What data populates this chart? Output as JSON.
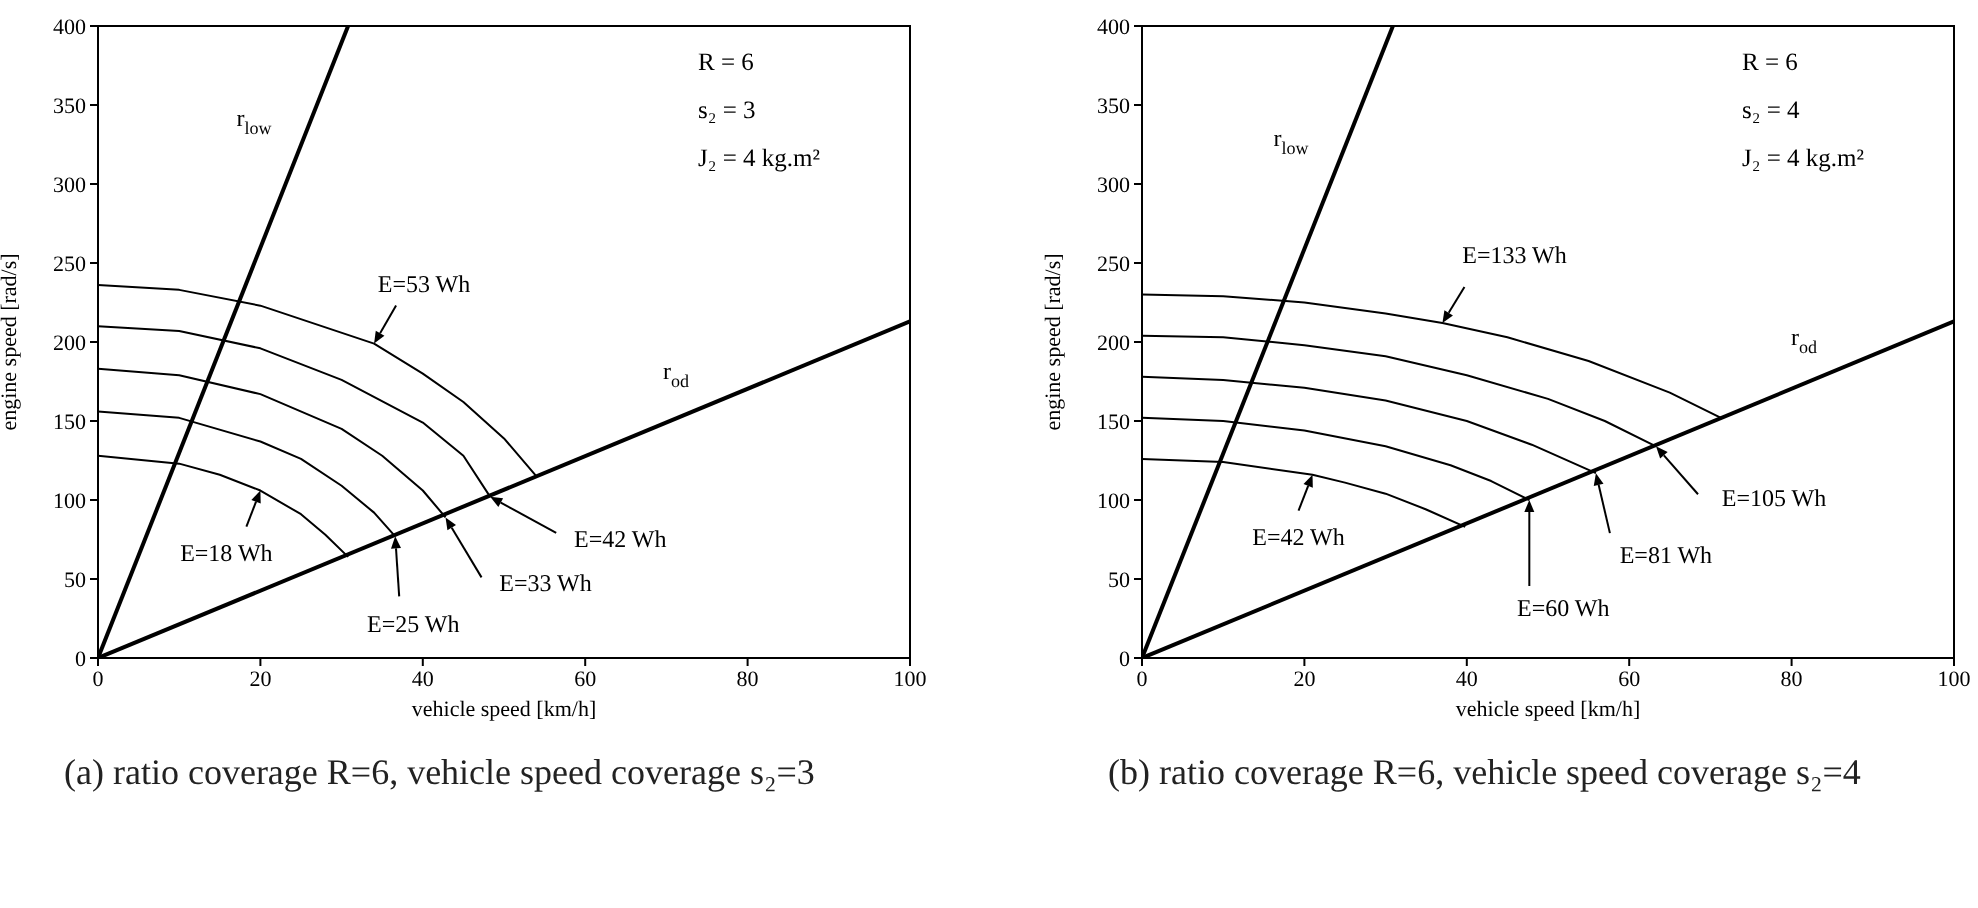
{
  "chart_data": [
    {
      "type": "line",
      "title": "(a) ratio coverage R=6, vehicle speed coverage s₂=3",
      "xlabel": "vehicle speed  [km/h]",
      "ylabel": "engine speed  [rad/s]",
      "xlim": [
        0,
        100
      ],
      "ylim": [
        0,
        400
      ],
      "xticks": [
        0,
        20,
        40,
        60,
        80,
        100
      ],
      "yticks": [
        0,
        50,
        100,
        150,
        200,
        250,
        300,
        350,
        400
      ],
      "marker": "none",
      "line_style": "solid",
      "annotations": [
        "R = 6",
        "s₂ = 3",
        "J₂ = 4 kg.m²",
        {
          "text": "E=53 Wh",
          "x": 34,
          "y": 199
        },
        {
          "text": "E=42 Wh",
          "x": 48.3,
          "y": 102
        },
        {
          "text": "E=33 Wh",
          "x": 42.8,
          "y": 89
        },
        {
          "text": "E=25 Wh",
          "x": 36.6,
          "y": 77
        },
        {
          "text": "E=18 Wh",
          "x": 20,
          "y": 106
        }
      ],
      "series": [
        {
          "name": "r$_{low}$",
          "color": "#000000",
          "x": [
            0,
            30.8
          ],
          "values": [
            0,
            400
          ]
        },
        {
          "name": "r$_{od}$",
          "color": "#000000",
          "x": [
            0,
            100
          ],
          "values": [
            0,
            213
          ]
        },
        {
          "color": "#000000",
          "x": [
            0,
            10,
            20,
            34,
            40,
            45,
            50,
            54
          ],
          "values": [
            236,
            233,
            223,
            199,
            180,
            162,
            139,
            115
          ]
        },
        {
          "color": "#000000",
          "x": [
            0,
            10,
            20,
            30,
            40,
            45,
            48.3
          ],
          "values": [
            210,
            207,
            196,
            176,
            149,
            128,
            102
          ]
        },
        {
          "color": "#000000",
          "x": [
            0,
            10,
            20,
            30,
            35,
            40,
            42.8
          ],
          "values": [
            183,
            179,
            167,
            145,
            128,
            106,
            89
          ]
        },
        {
          "color": "#000000",
          "x": [
            0,
            10,
            20,
            25,
            30,
            34,
            36.6
          ],
          "values": [
            156,
            152,
            137,
            126,
            109,
            92,
            77
          ]
        },
        {
          "color": "#000000",
          "x": [
            0,
            10,
            15,
            20,
            25,
            28,
            30.8
          ],
          "values": [
            128,
            123,
            116,
            106,
            91,
            78,
            64
          ]
        }
      ]
    },
    {
      "type": "line",
      "title": "(b) ratio coverage R=6, vehicle speed coverage s₂=4",
      "xlabel": "vehicle speed  [km/h]",
      "ylabel": "engine speed  [rad/s]",
      "xlim": [
        0,
        100
      ],
      "ylim": [
        0,
        400
      ],
      "xticks": [
        0,
        20,
        40,
        60,
        80,
        100
      ],
      "yticks": [
        0,
        50,
        100,
        150,
        200,
        250,
        300,
        350,
        400
      ],
      "marker": "none",
      "line_style": "solid",
      "annotations": [
        "R = 6",
        "s₂ = 4",
        "J₂ = 4 kg.m²",
        {
          "text": "E=133 Wh",
          "x": 37,
          "y": 212
        },
        {
          "text": "E=105 Wh",
          "x": 63.3,
          "y": 134
        },
        {
          "text": "E=81 Wh",
          "x": 55.9,
          "y": 117
        },
        {
          "text": "E=60 Wh",
          "x": 47.7,
          "y": 100
        },
        {
          "text": "E=42 Wh",
          "x": 21,
          "y": 116
        }
      ],
      "series": [
        {
          "name": "r$_{low}$",
          "color": "#000000",
          "x": [
            0,
            30.9
          ],
          "values": [
            0,
            400
          ]
        },
        {
          "name": "r$_{od}$",
          "color": "#000000",
          "x": [
            0,
            100
          ],
          "values": [
            0,
            213
          ]
        },
        {
          "color": "#000000",
          "x": [
            0,
            10,
            20,
            30,
            37,
            45,
            55,
            65,
            71.3
          ],
          "values": [
            230,
            229,
            225,
            218,
            212,
            203,
            188,
            168,
            152
          ]
        },
        {
          "color": "#000000",
          "x": [
            0,
            10,
            20,
            30,
            40,
            50,
            57,
            63.3
          ],
          "values": [
            204,
            203,
            198,
            191,
            179,
            164,
            150,
            134
          ]
        },
        {
          "color": "#000000",
          "x": [
            0,
            10,
            20,
            30,
            40,
            48,
            55.9
          ],
          "values": [
            178,
            176,
            171,
            163,
            150,
            135,
            117
          ]
        },
        {
          "color": "#000000",
          "x": [
            0,
            10,
            20,
            30,
            38,
            43,
            47.7
          ],
          "values": [
            152,
            150,
            144,
            134,
            122,
            112,
            100
          ]
        },
        {
          "color": "#000000",
          "x": [
            0,
            10,
            21,
            25,
            30,
            35,
            39.8
          ],
          "values": [
            126,
            124,
            116,
            111,
            104,
            94,
            83
          ]
        }
      ]
    }
  ]
}
